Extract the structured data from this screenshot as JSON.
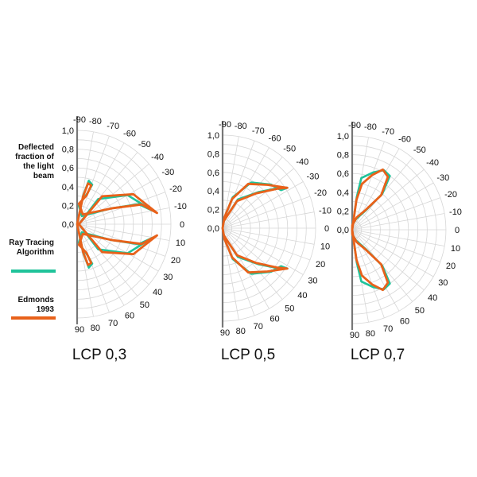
{
  "legend": {
    "title": "Deflected fraction of the light beam",
    "items": [
      {
        "label": "Ray Tracing Algorithm",
        "color": "#1fc39a"
      },
      {
        "label": "Edmonds 1993",
        "color": "#e8611a"
      }
    ]
  },
  "chart_data": [
    {
      "type": "polar-line",
      "title": "LCP 0,3",
      "r_ticks": [
        "0,0",
        "0,2",
        "0,4",
        "0,6",
        "0,8",
        "1,0"
      ],
      "r_range": [
        0,
        1.0
      ],
      "angle_ticks": [
        -90,
        -80,
        -70,
        -60,
        -50,
        -40,
        -30,
        -20,
        -10,
        0,
        10,
        20,
        30,
        40,
        50,
        60,
        70,
        80,
        90
      ],
      "angle_range": [
        -90,
        90
      ],
      "grid": true,
      "series": [
        {
          "name": "Ray Tracing Algorithm",
          "color": "#1fc39a",
          "points": [
            [
              -90,
              0
            ],
            [
              -78,
              0.32
            ],
            [
              -75,
              0.48
            ],
            [
              -69,
              0.45
            ],
            [
              -72,
              0.34
            ],
            [
              -85,
              0.2
            ],
            [
              -60,
              0.1
            ],
            [
              -25,
              0.4
            ],
            [
              -18,
              0.69
            ],
            [
              -10,
              0.82
            ],
            [
              -30,
              0.62
            ],
            [
              -50,
              0.35
            ],
            [
              -2,
              0.02
            ],
            [
              2,
              0.02
            ],
            [
              50,
              0.35
            ],
            [
              30,
              0.62
            ],
            [
              10,
              0.82
            ],
            [
              18,
              0.69
            ],
            [
              25,
              0.4
            ],
            [
              60,
              0.1
            ],
            [
              85,
              0.2
            ],
            [
              72,
              0.34
            ],
            [
              69,
              0.45
            ],
            [
              75,
              0.48
            ],
            [
              78,
              0.32
            ],
            [
              90,
              0
            ]
          ]
        },
        {
          "name": "Edmonds 1993",
          "color": "#e8611a",
          "points": [
            [
              -90,
              0
            ],
            [
              -78,
              0.3
            ],
            [
              -75,
              0.45
            ],
            [
              -70,
              0.44
            ],
            [
              -72,
              0.32
            ],
            [
              -85,
              0.22
            ],
            [
              -60,
              0.12
            ],
            [
              -24,
              0.42
            ],
            [
              -17,
              0.72
            ],
            [
              -8,
              0.86
            ],
            [
              -28,
              0.68
            ],
            [
              -48,
              0.4
            ],
            [
              -2,
              0.02
            ],
            [
              2,
              0.02
            ],
            [
              48,
              0.4
            ],
            [
              28,
              0.68
            ],
            [
              8,
              0.86
            ],
            [
              17,
              0.72
            ],
            [
              24,
              0.42
            ],
            [
              60,
              0.12
            ],
            [
              85,
              0.22
            ],
            [
              72,
              0.32
            ],
            [
              70,
              0.44
            ],
            [
              75,
              0.45
            ],
            [
              78,
              0.3
            ],
            [
              90,
              0
            ]
          ]
        }
      ]
    },
    {
      "type": "polar-line",
      "title": "LCP 0,5",
      "r_ticks": [
        "0,0",
        "0,2",
        "0,4",
        "0,6",
        "0,8",
        "1,0"
      ],
      "r_range": [
        0,
        1.0
      ],
      "angle_ticks": [
        -90,
        -80,
        -70,
        -60,
        -50,
        -40,
        -30,
        -20,
        -10,
        0,
        10,
        20,
        30,
        40,
        50,
        60,
        70,
        80,
        90
      ],
      "angle_range": [
        -90,
        90
      ],
      "grid": true,
      "series": [
        {
          "name": "Ray Tracing Algorithm",
          "color": "#1fc39a",
          "points": [
            [
              -90,
              0
            ],
            [
              -80,
              0.12
            ],
            [
              -72,
              0.35
            ],
            [
              -58,
              0.58
            ],
            [
              -42,
              0.7
            ],
            [
              -33,
              0.75
            ],
            [
              -32,
              0.82
            ],
            [
              -35,
              0.76
            ],
            [
              -45,
              0.55
            ],
            [
              -62,
              0.35
            ],
            [
              -80,
              0.08
            ],
            [
              90,
              0
            ],
            [
              80,
              0.12
            ],
            [
              72,
              0.35
            ],
            [
              58,
              0.58
            ],
            [
              42,
              0.7
            ],
            [
              33,
              0.75
            ],
            [
              32,
              0.82
            ],
            [
              35,
              0.76
            ],
            [
              45,
              0.55
            ],
            [
              62,
              0.35
            ],
            [
              80,
              0.08
            ],
            [
              90,
              0
            ]
          ]
        },
        {
          "name": "Edmonds 1993",
          "color": "#e8611a",
          "points": [
            [
              -90,
              0
            ],
            [
              -80,
              0.12
            ],
            [
              -72,
              0.33
            ],
            [
              -60,
              0.55
            ],
            [
              -44,
              0.67
            ],
            [
              -32,
              0.82
            ],
            [
              -36,
              0.72
            ],
            [
              -46,
              0.52
            ],
            [
              -62,
              0.33
            ],
            [
              -80,
              0.08
            ],
            [
              90,
              0
            ],
            [
              80,
              0.12
            ],
            [
              72,
              0.33
            ],
            [
              60,
              0.55
            ],
            [
              44,
              0.67
            ],
            [
              32,
              0.82
            ],
            [
              36,
              0.72
            ],
            [
              46,
              0.52
            ],
            [
              62,
              0.33
            ],
            [
              80,
              0.08
            ],
            [
              90,
              0
            ]
          ]
        }
      ]
    },
    {
      "type": "polar-line",
      "title": "LCP 0,7",
      "r_ticks": [
        "0,0",
        "0,2",
        "0,4",
        "0,6",
        "0,8",
        "1,0"
      ],
      "r_range": [
        0,
        1.0
      ],
      "angle_ticks": [
        -90,
        -80,
        -70,
        -60,
        -50,
        -40,
        -30,
        -20,
        -10,
        0,
        10,
        20,
        30,
        40,
        50,
        60,
        70,
        80,
        90
      ],
      "angle_range": [
        -90,
        90
      ],
      "grid": true,
      "series": [
        {
          "name": "Ray Tracing Algorithm",
          "color": "#1fc39a",
          "points": [
            [
              -90,
              0
            ],
            [
              -82,
              0.35
            ],
            [
              -80,
              0.56
            ],
            [
              -70,
              0.65
            ],
            [
              -62,
              0.72
            ],
            [
              -55,
              0.7
            ],
            [
              -50,
              0.5
            ],
            [
              -55,
              0.25
            ],
            [
              -70,
              0.12
            ],
            [
              -88,
              0.05
            ],
            [
              90,
              0
            ],
            [
              82,
              0.35
            ],
            [
              80,
              0.56
            ],
            [
              70,
              0.65
            ],
            [
              62,
              0.72
            ],
            [
              55,
              0.7
            ],
            [
              50,
              0.5
            ],
            [
              55,
              0.25
            ],
            [
              70,
              0.12
            ],
            [
              88,
              0.05
            ],
            [
              90,
              0
            ]
          ]
        },
        {
          "name": "Edmonds 1993",
          "color": "#e8611a",
          "points": [
            [
              -90,
              0
            ],
            [
              -82,
              0.32
            ],
            [
              -78,
              0.5
            ],
            [
              -70,
              0.62
            ],
            [
              -63,
              0.72
            ],
            [
              -56,
              0.68
            ],
            [
              -50,
              0.48
            ],
            [
              -56,
              0.25
            ],
            [
              -70,
              0.14
            ],
            [
              -88,
              0.05
            ],
            [
              90,
              0
            ],
            [
              82,
              0.32
            ],
            [
              78,
              0.5
            ],
            [
              70,
              0.62
            ],
            [
              63,
              0.72
            ],
            [
              56,
              0.68
            ],
            [
              50,
              0.48
            ],
            [
              56,
              0.25
            ],
            [
              70,
              0.14
            ],
            [
              88,
              0.05
            ],
            [
              90,
              0
            ]
          ]
        }
      ]
    }
  ]
}
